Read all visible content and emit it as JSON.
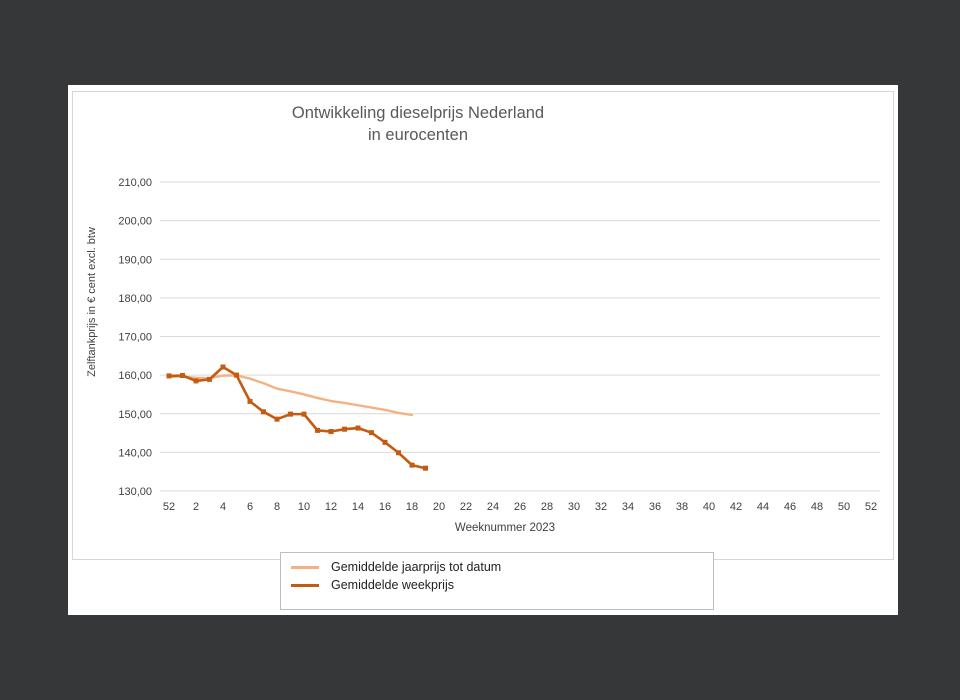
{
  "chart_data": {
    "type": "line",
    "title_line1": "Ontwikkeling dieselprijs Nederland",
    "title_line2": "in eurocenten",
    "xlabel": "Weeknummer 2023",
    "ylabel": "Zelftankprijs in € cent excl. btw",
    "ylim": [
      130,
      210
    ],
    "yticks": [
      "210,00",
      "200,00",
      "190,00",
      "180,00",
      "170,00",
      "160,00",
      "150,00",
      "140,00",
      "130,00"
    ],
    "xtick_labels": [
      "52",
      "2",
      "4",
      "6",
      "8",
      "10",
      "12",
      "14",
      "16",
      "18",
      "20",
      "22",
      "24",
      "26",
      "28",
      "30",
      "32",
      "34",
      "36",
      "38",
      "40",
      "42",
      "44",
      "46",
      "48",
      "50",
      "52"
    ],
    "grid": true,
    "legend_position": "bottom",
    "x_categories": [
      "52",
      "1",
      "2",
      "3",
      "4",
      "5",
      "6",
      "7",
      "8",
      "9",
      "10",
      "11",
      "12",
      "13",
      "14",
      "15",
      "16",
      "17",
      "18",
      "19"
    ],
    "series": [
      {
        "name": "Gemiddelde jaarprijs tot datum",
        "color": "#f4b183",
        "values": [
          159.6,
          159.6,
          159.3,
          159.2,
          159.9,
          159.9,
          159.1,
          157.9,
          156.5,
          155.8,
          155.0,
          154.1,
          153.3,
          152.8,
          152.2,
          151.6,
          151.0,
          150.2,
          149.7
        ]
      },
      {
        "name": "Gemiddelde weekprijs",
        "color": "#c55a11",
        "markers": true,
        "values": [
          159.8,
          159.9,
          158.5,
          158.9,
          162.1,
          160.0,
          153.2,
          150.5,
          148.6,
          149.9,
          149.9,
          145.7,
          145.4,
          146.0,
          146.3,
          145.1,
          142.6,
          139.9,
          136.7,
          135.9
        ]
      }
    ]
  }
}
